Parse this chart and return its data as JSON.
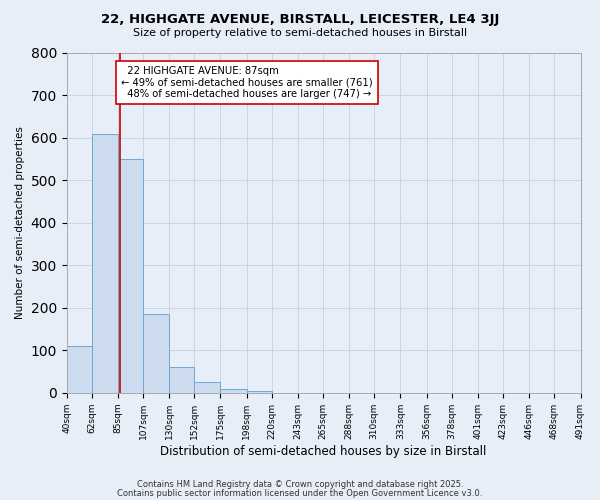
{
  "title1": "22, HIGHGATE AVENUE, BIRSTALL, LEICESTER, LE4 3JJ",
  "title2": "Size of property relative to semi-detached houses in Birstall",
  "bar_values": [
    110,
    610,
    550,
    185,
    62,
    25,
    10,
    5,
    0,
    0,
    0,
    0,
    0,
    0,
    0,
    0,
    0,
    0,
    0,
    0
  ],
  "bin_edges": [
    40,
    62,
    85,
    107,
    130,
    152,
    175,
    198,
    220,
    243,
    265,
    288,
    310,
    333,
    356,
    378,
    401,
    423,
    446,
    468,
    491
  ],
  "x_labels": [
    "40sqm",
    "62sqm",
    "85sqm",
    "107sqm",
    "130sqm",
    "152sqm",
    "175sqm",
    "198sqm",
    "220sqm",
    "243sqm",
    "265sqm",
    "288sqm",
    "310sqm",
    "333sqm",
    "356sqm",
    "378sqm",
    "401sqm",
    "423sqm",
    "446sqm",
    "468sqm",
    "491sqm"
  ],
  "xlabel": "Distribution of semi-detached houses by size in Birstall",
  "ylabel": "Number of semi-detached properties",
  "bar_color": "#ccdcee",
  "bar_edge_color": "#6aaad4",
  "grid_color": "#c8d4e8",
  "bg_color": "#e8eef8",
  "vline_x": 87,
  "vline_color": "#cc0000",
  "annotation_text": "  22 HIGHGATE AVENUE: 87sqm\n← 49% of semi-detached houses are smaller (761)\n  48% of semi-detached houses are larger (747) →",
  "ylim": [
    0,
    800
  ],
  "yticks": [
    0,
    100,
    200,
    300,
    400,
    500,
    600,
    700,
    800
  ],
  "footer1": "Contains HM Land Registry data © Crown copyright and database right 2025.",
  "footer2": "Contains public sector information licensed under the Open Government Licence v3.0."
}
